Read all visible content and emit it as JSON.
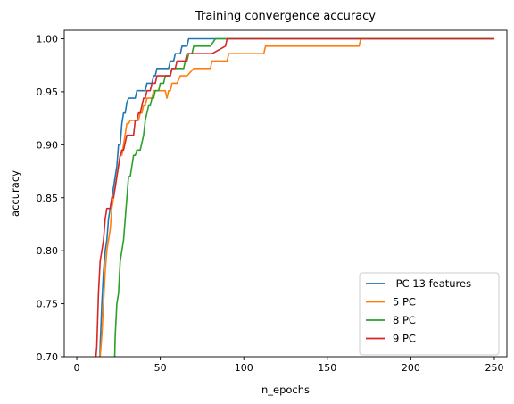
{
  "chart_data": {
    "type": "line",
    "title": "Training convergence accuracy",
    "xlabel": "n_epochs",
    "ylabel": "accuracy",
    "xlim": [
      -7.5,
      257.5
    ],
    "ylim": [
      0.7,
      1.008
    ],
    "xticks": [
      0,
      50,
      100,
      150,
      200,
      250
    ],
    "xtick_labels": [
      "0",
      "50",
      "100",
      "150",
      "200",
      "250"
    ],
    "yticks": [
      0.7,
      0.75,
      0.8,
      0.85,
      0.9,
      0.95,
      1.0
    ],
    "ytick_labels": [
      "0.70",
      "0.75",
      "0.80",
      "0.85",
      "0.90",
      "0.95",
      "1.00"
    ],
    "grid": false,
    "legend_position": "lower-right",
    "series": [
      {
        "name": " PC 13 features",
        "color": "#1f77b4",
        "x": [
          13,
          14,
          15,
          16,
          17,
          18,
          19,
          20,
          21,
          22,
          23,
          24,
          25,
          26,
          27,
          28,
          29,
          30,
          31,
          32,
          33,
          34,
          35,
          36,
          37,
          38,
          39,
          40,
          41,
          42,
          43,
          44,
          45,
          46,
          47,
          48,
          49,
          50,
          55,
          56,
          57,
          58,
          59,
          60,
          61,
          62,
          63,
          64,
          65,
          66,
          67,
          68,
          250
        ],
        "y": [
          0.65,
          0.71,
          0.75,
          0.78,
          0.8,
          0.81,
          0.83,
          0.84,
          0.85,
          0.86,
          0.87,
          0.88,
          0.9,
          0.9,
          0.92,
          0.93,
          0.93,
          0.94,
          0.944,
          0.944,
          0.944,
          0.944,
          0.944,
          0.951,
          0.951,
          0.951,
          0.951,
          0.951,
          0.951,
          0.958,
          0.958,
          0.958,
          0.958,
          0.965,
          0.965,
          0.972,
          0.972,
          0.972,
          0.972,
          0.979,
          0.979,
          0.979,
          0.986,
          0.986,
          0.986,
          0.986,
          0.993,
          0.993,
          0.993,
          0.993,
          1.0,
          1.0,
          1.0
        ]
      },
      {
        "name": "5 PC",
        "color": "#ff7f0e",
        "x": [
          13,
          14,
          15,
          16,
          17,
          18,
          19,
          20,
          21,
          22,
          23,
          24,
          25,
          26,
          27,
          28,
          29,
          30,
          31,
          32,
          33,
          34,
          35,
          36,
          37,
          38,
          39,
          40,
          41,
          42,
          43,
          44,
          45,
          46,
          47,
          48,
          49,
          50,
          52,
          53,
          54,
          55,
          56,
          57,
          58,
          59,
          60,
          62,
          63,
          65,
          66,
          70,
          71,
          72,
          80,
          81,
          82,
          84,
          85,
          90,
          91,
          112,
          113,
          169,
          170,
          250
        ],
        "y": [
          0.68,
          0.7,
          0.72,
          0.75,
          0.78,
          0.8,
          0.81,
          0.82,
          0.84,
          0.85,
          0.86,
          0.87,
          0.88,
          0.89,
          0.89,
          0.9,
          0.91,
          0.92,
          0.92,
          0.923,
          0.923,
          0.923,
          0.923,
          0.923,
          0.923,
          0.93,
          0.93,
          0.937,
          0.937,
          0.944,
          0.944,
          0.944,
          0.944,
          0.951,
          0.951,
          0.951,
          0.951,
          0.951,
          0.951,
          0.951,
          0.944,
          0.951,
          0.951,
          0.958,
          0.958,
          0.958,
          0.958,
          0.965,
          0.965,
          0.965,
          0.965,
          0.972,
          0.972,
          0.972,
          0.972,
          0.979,
          0.979,
          0.979,
          0.979,
          0.979,
          0.986,
          0.986,
          0.993,
          0.993,
          1.0,
          1.0
        ]
      },
      {
        "name": "8 PC",
        "color": "#2ca02c",
        "x": [
          22,
          23,
          24,
          25,
          26,
          27,
          28,
          29,
          30,
          31,
          32,
          33,
          34,
          35,
          36,
          37,
          38,
          39,
          40,
          41,
          42,
          43,
          44,
          45,
          46,
          47,
          48,
          49,
          50,
          51,
          52,
          53,
          54,
          55,
          56,
          57,
          58,
          59,
          60,
          64,
          65,
          66,
          67,
          68,
          69,
          70,
          78,
          79,
          80,
          83,
          84,
          90,
          250
        ],
        "y": [
          0.65,
          0.72,
          0.75,
          0.76,
          0.79,
          0.8,
          0.81,
          0.83,
          0.85,
          0.87,
          0.87,
          0.88,
          0.89,
          0.89,
          0.895,
          0.895,
          0.895,
          0.902,
          0.909,
          0.923,
          0.93,
          0.937,
          0.937,
          0.944,
          0.944,
          0.951,
          0.951,
          0.951,
          0.958,
          0.958,
          0.958,
          0.965,
          0.965,
          0.965,
          0.965,
          0.972,
          0.972,
          0.972,
          0.972,
          0.972,
          0.979,
          0.979,
          0.986,
          0.986,
          0.986,
          0.993,
          0.993,
          0.993,
          0.993,
          1.0,
          1.0,
          1.0,
          1.0
        ]
      },
      {
        "name": "9 PC",
        "color": "#d62728",
        "x": [
          11,
          12,
          13,
          14,
          15,
          16,
          17,
          18,
          19,
          20,
          21,
          22,
          23,
          24,
          25,
          26,
          27,
          28,
          29,
          30,
          31,
          32,
          33,
          34,
          35,
          36,
          37,
          38,
          39,
          40,
          41,
          42,
          43,
          44,
          45,
          46,
          47,
          48,
          49,
          50,
          51,
          52,
          53,
          54,
          55,
          56,
          57,
          58,
          59,
          60,
          65,
          66,
          80,
          81,
          89,
          90,
          250
        ],
        "y": [
          0.69,
          0.71,
          0.76,
          0.79,
          0.8,
          0.81,
          0.83,
          0.84,
          0.84,
          0.84,
          0.85,
          0.85,
          0.86,
          0.87,
          0.88,
          0.89,
          0.895,
          0.895,
          0.902,
          0.909,
          0.909,
          0.909,
          0.909,
          0.909,
          0.923,
          0.923,
          0.93,
          0.93,
          0.937,
          0.944,
          0.944,
          0.951,
          0.951,
          0.951,
          0.958,
          0.958,
          0.958,
          0.965,
          0.965,
          0.965,
          0.965,
          0.965,
          0.965,
          0.965,
          0.965,
          0.965,
          0.972,
          0.972,
          0.972,
          0.979,
          0.979,
          0.986,
          0.986,
          0.986,
          0.993,
          1.0,
          1.0
        ]
      }
    ]
  }
}
